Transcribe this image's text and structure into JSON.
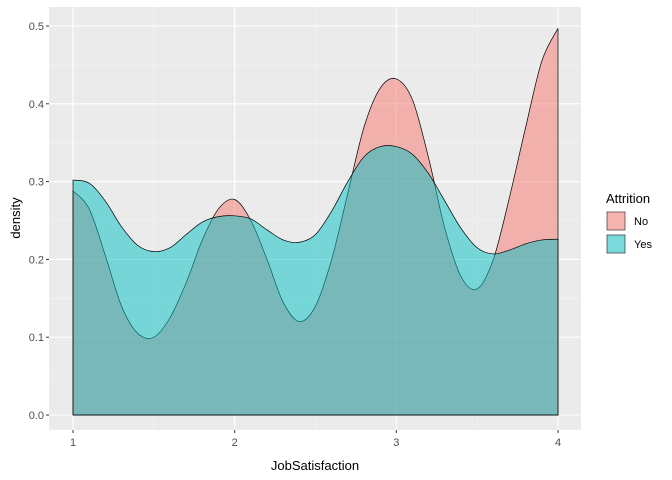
{
  "chart_data": {
    "type": "area",
    "subtype": "density",
    "title": "",
    "xlabel": "JobSatisfaction",
    "ylabel": "density",
    "xlim": [
      1,
      4
    ],
    "ylim": [
      0,
      0.5
    ],
    "x_ticks": [
      1,
      2,
      3,
      4
    ],
    "y_ticks": [
      0.0,
      0.1,
      0.2,
      0.3,
      0.4,
      0.5
    ],
    "x_tick_labels": [
      "1",
      "2",
      "3",
      "4"
    ],
    "y_tick_labels": [
      "0.0",
      "0.1",
      "0.2",
      "0.3",
      "0.4",
      "0.5"
    ],
    "grid": true,
    "legend": {
      "title": "Attrition",
      "placement": "right",
      "entries": [
        "No",
        "Yes"
      ]
    },
    "series": [
      {
        "name": "No",
        "color": "#F8766D",
        "opacity": 0.5,
        "x": [
          1.0,
          1.1,
          1.2,
          1.3,
          1.4,
          1.5,
          1.6,
          1.7,
          1.8,
          1.9,
          2.0,
          2.1,
          2.2,
          2.3,
          2.4,
          2.5,
          2.6,
          2.7,
          2.8,
          2.9,
          3.0,
          3.1,
          3.2,
          3.3,
          3.4,
          3.5,
          3.6,
          3.7,
          3.8,
          3.9,
          4.0
        ],
        "values": [
          0.288,
          0.265,
          0.205,
          0.14,
          0.105,
          0.1,
          0.125,
          0.17,
          0.225,
          0.265,
          0.277,
          0.25,
          0.2,
          0.145,
          0.12,
          0.14,
          0.2,
          0.285,
          0.37,
          0.42,
          0.432,
          0.405,
          0.33,
          0.24,
          0.178,
          0.162,
          0.2,
          0.28,
          0.37,
          0.455,
          0.497
        ]
      },
      {
        "name": "Yes",
        "color": "#00BFC4",
        "opacity": 0.5,
        "x": [
          1.0,
          1.1,
          1.2,
          1.3,
          1.4,
          1.5,
          1.6,
          1.7,
          1.8,
          1.9,
          2.0,
          2.1,
          2.2,
          2.3,
          2.4,
          2.5,
          2.6,
          2.7,
          2.8,
          2.9,
          3.0,
          3.1,
          3.2,
          3.3,
          3.4,
          3.5,
          3.6,
          3.7,
          3.8,
          3.9,
          4.0
        ],
        "values": [
          0.302,
          0.298,
          0.275,
          0.242,
          0.218,
          0.21,
          0.215,
          0.232,
          0.248,
          0.255,
          0.256,
          0.252,
          0.238,
          0.225,
          0.222,
          0.232,
          0.262,
          0.3,
          0.332,
          0.345,
          0.345,
          0.335,
          0.31,
          0.275,
          0.24,
          0.215,
          0.207,
          0.212,
          0.22,
          0.225,
          0.226
        ]
      }
    ]
  }
}
